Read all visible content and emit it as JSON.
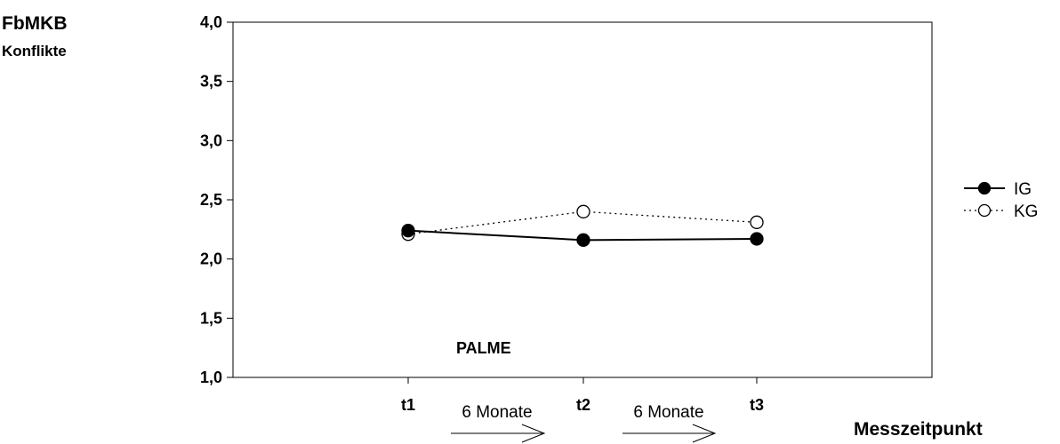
{
  "chart_data": {
    "type": "line",
    "title": "FbMKB",
    "subtitle": "Konflikte",
    "xlabel": "Messzeitpunkt",
    "ylabel": "",
    "categories": [
      "t1",
      "t2",
      "t3"
    ],
    "ylim": [
      1.0,
      4.0
    ],
    "yticks": [
      1.0,
      1.5,
      2.0,
      2.5,
      3.0,
      3.5,
      4.0
    ],
    "ytick_labels": [
      "1,0",
      "1,5",
      "2,0",
      "2,5",
      "3,0",
      "3,5",
      "4,0"
    ],
    "grid": false,
    "legend": "right",
    "series": [
      {
        "name": "IG",
        "values": [
          2.24,
          2.16,
          2.17
        ],
        "marker": "filled-circle",
        "line": "solid",
        "color": "#000000"
      },
      {
        "name": "KG",
        "values": [
          2.21,
          2.4,
          2.31
        ],
        "marker": "open-circle",
        "line": "dotted",
        "color": "#000000"
      }
    ],
    "annotations": {
      "inner_label": "PALME",
      "intervals": [
        "6 Monate",
        "6 Monate"
      ]
    }
  }
}
